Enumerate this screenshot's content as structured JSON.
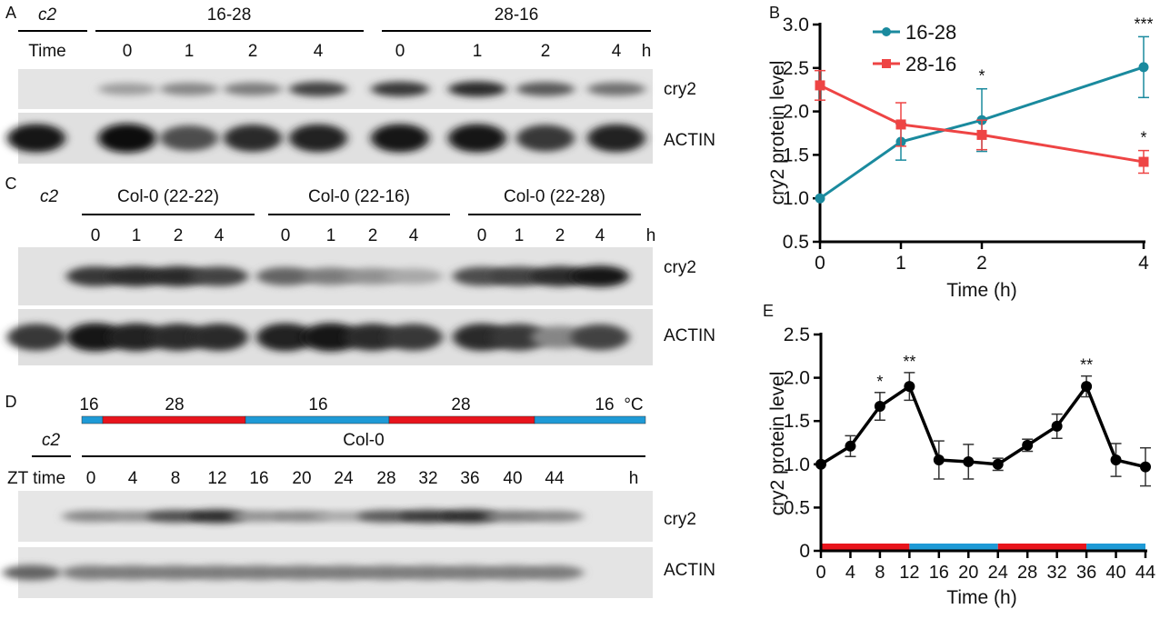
{
  "panels": {
    "A": {
      "label": "A",
      "control": "c2",
      "groups": [
        "16-28",
        "28-16"
      ],
      "time_label": "Time",
      "lanes": [
        "0",
        "1",
        "2",
        "4",
        "0",
        "1",
        "2",
        "4"
      ],
      "unit": "h",
      "rows": [
        "cry2",
        "ACTIN"
      ],
      "cry2_intensity": [
        0.0,
        0.35,
        0.45,
        0.5,
        0.75,
        0.8,
        0.85,
        0.65,
        0.55
      ],
      "actin_intensity": [
        0.95,
        1.0,
        0.7,
        0.85,
        0.9,
        0.95,
        0.95,
        0.8,
        0.9
      ]
    },
    "B": {
      "label": "B"
    },
    "C": {
      "label": "C",
      "control": "c2",
      "groups": [
        "Col-0 (22-22)",
        "Col-0 (22-16)",
        "Col-0 (22-28)"
      ],
      "lanes": [
        "0",
        "1",
        "2",
        "4",
        "0",
        "1",
        "2",
        "4",
        "0",
        "1",
        "2",
        "4"
      ],
      "unit": "h",
      "rows": [
        "cry2",
        "ACTIN"
      ],
      "cry2_intensity": [
        0.0,
        0.8,
        0.85,
        0.85,
        0.75,
        0.6,
        0.5,
        0.4,
        0.3,
        0.7,
        0.75,
        0.85,
        0.95
      ],
      "actin_intensity": [
        0.8,
        0.95,
        0.9,
        0.85,
        0.85,
        0.9,
        0.95,
        0.85,
        0.8,
        0.85,
        0.8,
        0.45,
        0.75
      ]
    },
    "D": {
      "label": "D",
      "control": "c2",
      "genotype": "Col-0",
      "temps": [
        "16",
        "28",
        "16",
        "28",
        "16"
      ],
      "temp_unit": "°C",
      "time_label": "ZT time",
      "lanes": [
        "0",
        "4",
        "8",
        "12",
        "16",
        "20",
        "24",
        "28",
        "32",
        "36",
        "40",
        "44"
      ],
      "unit": "h",
      "rows": [
        "cry2",
        "ACTIN"
      ],
      "cry2_intensity": [
        0.0,
        0.45,
        0.4,
        0.7,
        0.85,
        0.4,
        0.45,
        0.3,
        0.65,
        0.8,
        0.85,
        0.5,
        0.45
      ],
      "actin_intensity": [
        0.6,
        0.5,
        0.5,
        0.5,
        0.5,
        0.5,
        0.5,
        0.5,
        0.5,
        0.5,
        0.5,
        0.5,
        0.5
      ]
    },
    "E": {
      "label": "E"
    }
  },
  "colors": {
    "teal": "#1a8a9e",
    "red": "#ee4444",
    "bar_red": "#e8141c",
    "bar_blue": "#1e9ad6",
    "black": "#000000"
  },
  "chart_data": [
    {
      "panel": "B",
      "type": "line",
      "x": [
        0,
        1,
        2,
        4
      ],
      "xticks": [
        "0",
        "1",
        "2",
        "4"
      ],
      "yticks": [
        "0.5",
        "1.0",
        "1.5",
        "2.0",
        "2.5",
        "3.0"
      ],
      "ylim": [
        0.5,
        3.0
      ],
      "xlabel": "Time (h)",
      "ylabel": "cry2  protein level",
      "legend": "top-center",
      "series": [
        {
          "name": "16-28",
          "color": "#1a8a9e",
          "marker": "circle",
          "values": [
            1.0,
            1.65,
            1.9,
            2.51
          ],
          "err": [
            0,
            0.21,
            0.36,
            0.35
          ],
          "sig": [
            "",
            "",
            "*",
            "***"
          ]
        },
        {
          "name": "28-16",
          "color": "#ee4444",
          "marker": "square",
          "values": [
            2.3,
            1.85,
            1.73,
            1.42
          ],
          "err": [
            0.17,
            0.25,
            0.17,
            0.13
          ],
          "sig": [
            "",
            "",
            "",
            "*"
          ]
        }
      ]
    },
    {
      "panel": "E",
      "type": "line",
      "x": [
        0,
        4,
        8,
        12,
        16,
        20,
        24,
        28,
        32,
        36,
        40,
        44
      ],
      "xticks": [
        "0",
        "4",
        "8",
        "12",
        "16",
        "20",
        "24",
        "28",
        "32",
        "36",
        "40",
        "44"
      ],
      "yticks": [
        "0",
        "0.5",
        "1.0",
        "1.5",
        "2.0",
        "2.5"
      ],
      "ylim": [
        0,
        2.5
      ],
      "xlabel": "Time (h)",
      "ylabel": "cry2  protein  level",
      "series": [
        {
          "name": "Col-0",
          "color": "#000000",
          "values": [
            1.0,
            1.21,
            1.67,
            1.9,
            1.05,
            1.03,
            1.0,
            1.22,
            1.44,
            1.9,
            1.05,
            0.97
          ],
          "err": [
            0,
            0.12,
            0.16,
            0.16,
            0.22,
            0.2,
            0.07,
            0.07,
            0.14,
            0.12,
            0.19,
            0.22
          ],
          "sig": [
            "",
            "",
            "*",
            "**",
            "",
            "",
            "",
            "",
            "",
            "**",
            "",
            ""
          ]
        }
      ],
      "temperature_bar": [
        {
          "from": 0,
          "to": 12,
          "temp": "28"
        },
        {
          "from": 12,
          "to": 24,
          "temp": "16"
        },
        {
          "from": 24,
          "to": 36,
          "temp": "28"
        },
        {
          "from": 36,
          "to": 44,
          "temp": "16"
        }
      ]
    }
  ]
}
